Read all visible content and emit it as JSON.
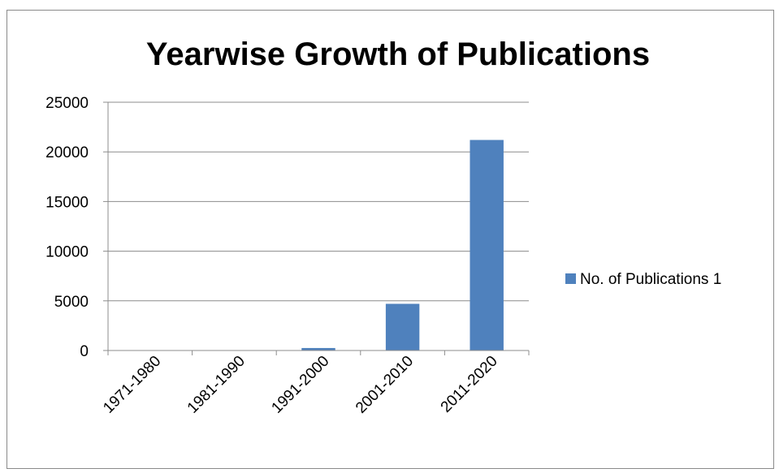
{
  "chart_data": {
    "type": "bar",
    "title": "Yearwise Growth of Publications",
    "categories": [
      "1971-1980",
      "1981-1990",
      "1991-2000",
      "2001-2010",
      "2011-2020"
    ],
    "series": [
      {
        "name": "No. of Publications  1",
        "values": [
          10,
          15,
          250,
          4700,
          21200
        ],
        "color": "#4f81bd"
      }
    ],
    "y_ticks": [
      "0",
      "5000",
      "10000",
      "15000",
      "20000",
      "25000"
    ],
    "ylim": [
      0,
      25000
    ],
    "grid": true,
    "legend_position": "right"
  }
}
